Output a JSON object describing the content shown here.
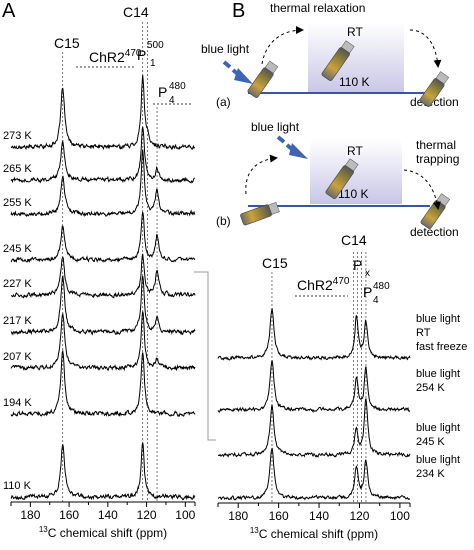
{
  "figure": {
    "panel_a_letter": "A",
    "panel_b_letter": "B",
    "shared_xlabel_prefix": "13",
    "shared_xlabel_text": "C chemical shift (ppm)"
  },
  "panel_a": {
    "peak_c15": "C15",
    "peak_c14": "C14",
    "peak_chr2": "ChR2",
    "peak_chr2_sup": "470",
    "peak_p500": "P",
    "peak_p500_sup": "500",
    "peak_p500_sub": "1",
    "peak_p480": "P",
    "peak_p480_sup": "480",
    "peak_p480_sub": "4"
  },
  "panel_b": {
    "scheme_a": {
      "label": "(a)",
      "title": "thermal relaxation",
      "rt_label": "RT",
      "temp_label": "110 K",
      "light_label": "blue light",
      "detection_label": "detection"
    },
    "scheme_b": {
      "label": "(b)",
      "title_line1": "thermal",
      "title_line2": "trapping",
      "rt_label": "RT",
      "temp_label": "110 K",
      "light_label": "blue light",
      "detection_label": "detection"
    },
    "peak_c15": "C15",
    "peak_c14": "C14",
    "peak_chr2": "ChR2",
    "peak_chr2_sup": "470",
    "peak_px": "P",
    "peak_px_sub": "x",
    "peak_p480": "P",
    "peak_p480_sup": "480",
    "peak_p480_sub": "4"
  },
  "colors": {
    "arrow_blue": "#3f64b5",
    "gradient_top": "#ffffff",
    "gradient_bottom": "#c8c6e6",
    "baseline_blue": "#3a54a6"
  },
  "chart_data": [
    {
      "type": "line",
      "panel": "A",
      "xlabel": "13C chemical shift (ppm)",
      "x_reversed": true,
      "xlim": [
        190,
        95
      ],
      "xticks": [
        180,
        160,
        140,
        120,
        100
      ],
      "reference_lines_ppm": [
        163.3,
        122.0,
        119.5,
        114.6
      ],
      "series": [
        {
          "name": "273 K",
          "peaks": [
            {
              "ppm": 163.3,
              "height": 0.85,
              "width": 1.2
            },
            {
              "ppm": 122.0,
              "height": 1.0,
              "width": 1.0
            },
            {
              "ppm": 119.5,
              "height": 0.1,
              "width": 1.0
            }
          ]
        },
        {
          "name": "265 K",
          "peaks": [
            {
              "ppm": 163.3,
              "height": 0.55,
              "width": 1.2
            },
            {
              "ppm": 122.0,
              "height": 0.75,
              "width": 1.0
            },
            {
              "ppm": 114.6,
              "height": 0.15,
              "width": 1.0
            }
          ]
        },
        {
          "name": "255 K",
          "peaks": [
            {
              "ppm": 163.3,
              "height": 0.55,
              "width": 1.2
            },
            {
              "ppm": 122.0,
              "height": 0.9,
              "width": 1.0
            },
            {
              "ppm": 114.6,
              "height": 0.35,
              "width": 1.0
            }
          ]
        },
        {
          "name": "245 K",
          "peaks": [
            {
              "ppm": 163.3,
              "height": 0.5,
              "width": 1.2
            },
            {
              "ppm": 122.0,
              "height": 0.7,
              "width": 1.0
            },
            {
              "ppm": 114.6,
              "height": 0.35,
              "width": 1.0
            }
          ]
        },
        {
          "name": "227 K",
          "peaks": [
            {
              "ppm": 163.3,
              "height": 0.55,
              "width": 1.2
            },
            {
              "ppm": 122.0,
              "height": 0.55,
              "width": 1.0
            },
            {
              "ppm": 114.6,
              "height": 0.35,
              "width": 1.0
            }
          ]
        },
        {
          "name": "217 K",
          "peaks": [
            {
              "ppm": 163.3,
              "height": 0.8,
              "width": 1.2
            },
            {
              "ppm": 122.0,
              "height": 0.8,
              "width": 1.0
            },
            {
              "ppm": 114.6,
              "height": 0.2,
              "width": 1.0
            }
          ]
        },
        {
          "name": "207 K",
          "peaks": [
            {
              "ppm": 163.3,
              "height": 0.8,
              "width": 1.2
            },
            {
              "ppm": 122.0,
              "height": 0.8,
              "width": 1.0
            },
            {
              "ppm": 114.6,
              "height": 0.12,
              "width": 1.0
            }
          ]
        },
        {
          "name": "194 K",
          "peaks": [
            {
              "ppm": 163.3,
              "height": 0.9,
              "width": 1.2
            },
            {
              "ppm": 122.0,
              "height": 0.9,
              "width": 1.0
            }
          ]
        },
        {
          "name": "110 K",
          "peaks": [
            {
              "ppm": 163.3,
              "height": 0.75,
              "width": 1.2
            },
            {
              "ppm": 122.0,
              "height": 0.75,
              "width": 1.0
            }
          ]
        }
      ]
    },
    {
      "type": "line",
      "panel": "B",
      "xlabel": "13C chemical shift (ppm)",
      "x_reversed": true,
      "xlim": [
        190,
        95
      ],
      "xticks": [
        180,
        160,
        140,
        120,
        100
      ],
      "reference_lines_ppm": [
        163.3,
        123.0,
        121.0,
        119.0,
        116.8
      ],
      "series": [
        {
          "name": "blue light RT fast freeze",
          "label_lines": [
            "blue light",
            "RT",
            "fast freeze"
          ],
          "peaks": [
            {
              "ppm": 163.3,
              "height": 0.85,
              "width": 1.2
            },
            {
              "ppm": 121.5,
              "height": 0.7,
              "width": 1.0
            },
            {
              "ppm": 116.8,
              "height": 0.6,
              "width": 1.0
            }
          ]
        },
        {
          "name": "blue light 254 K",
          "label_lines": [
            "blue light",
            "254 K"
          ],
          "peaks": [
            {
              "ppm": 163.3,
              "height": 0.85,
              "width": 1.2
            },
            {
              "ppm": 121.5,
              "height": 0.55,
              "width": 1.0
            },
            {
              "ppm": 116.8,
              "height": 0.7,
              "width": 1.0
            }
          ]
        },
        {
          "name": "blue light 245 K",
          "label_lines": [
            "blue light",
            "245 K"
          ],
          "peaks": [
            {
              "ppm": 163.3,
              "height": 0.85,
              "width": 1.2
            },
            {
              "ppm": 121.5,
              "height": 0.45,
              "width": 1.0
            },
            {
              "ppm": 116.8,
              "height": 0.95,
              "width": 1.0
            }
          ]
        },
        {
          "name": "blue light 234 K",
          "label_lines": [
            "blue light",
            "234 K"
          ],
          "peaks": [
            {
              "ppm": 163.3,
              "height": 0.85,
              "width": 1.2
            },
            {
              "ppm": 121.5,
              "height": 0.55,
              "width": 1.0
            },
            {
              "ppm": 116.8,
              "height": 0.65,
              "width": 1.0
            }
          ]
        }
      ]
    }
  ]
}
